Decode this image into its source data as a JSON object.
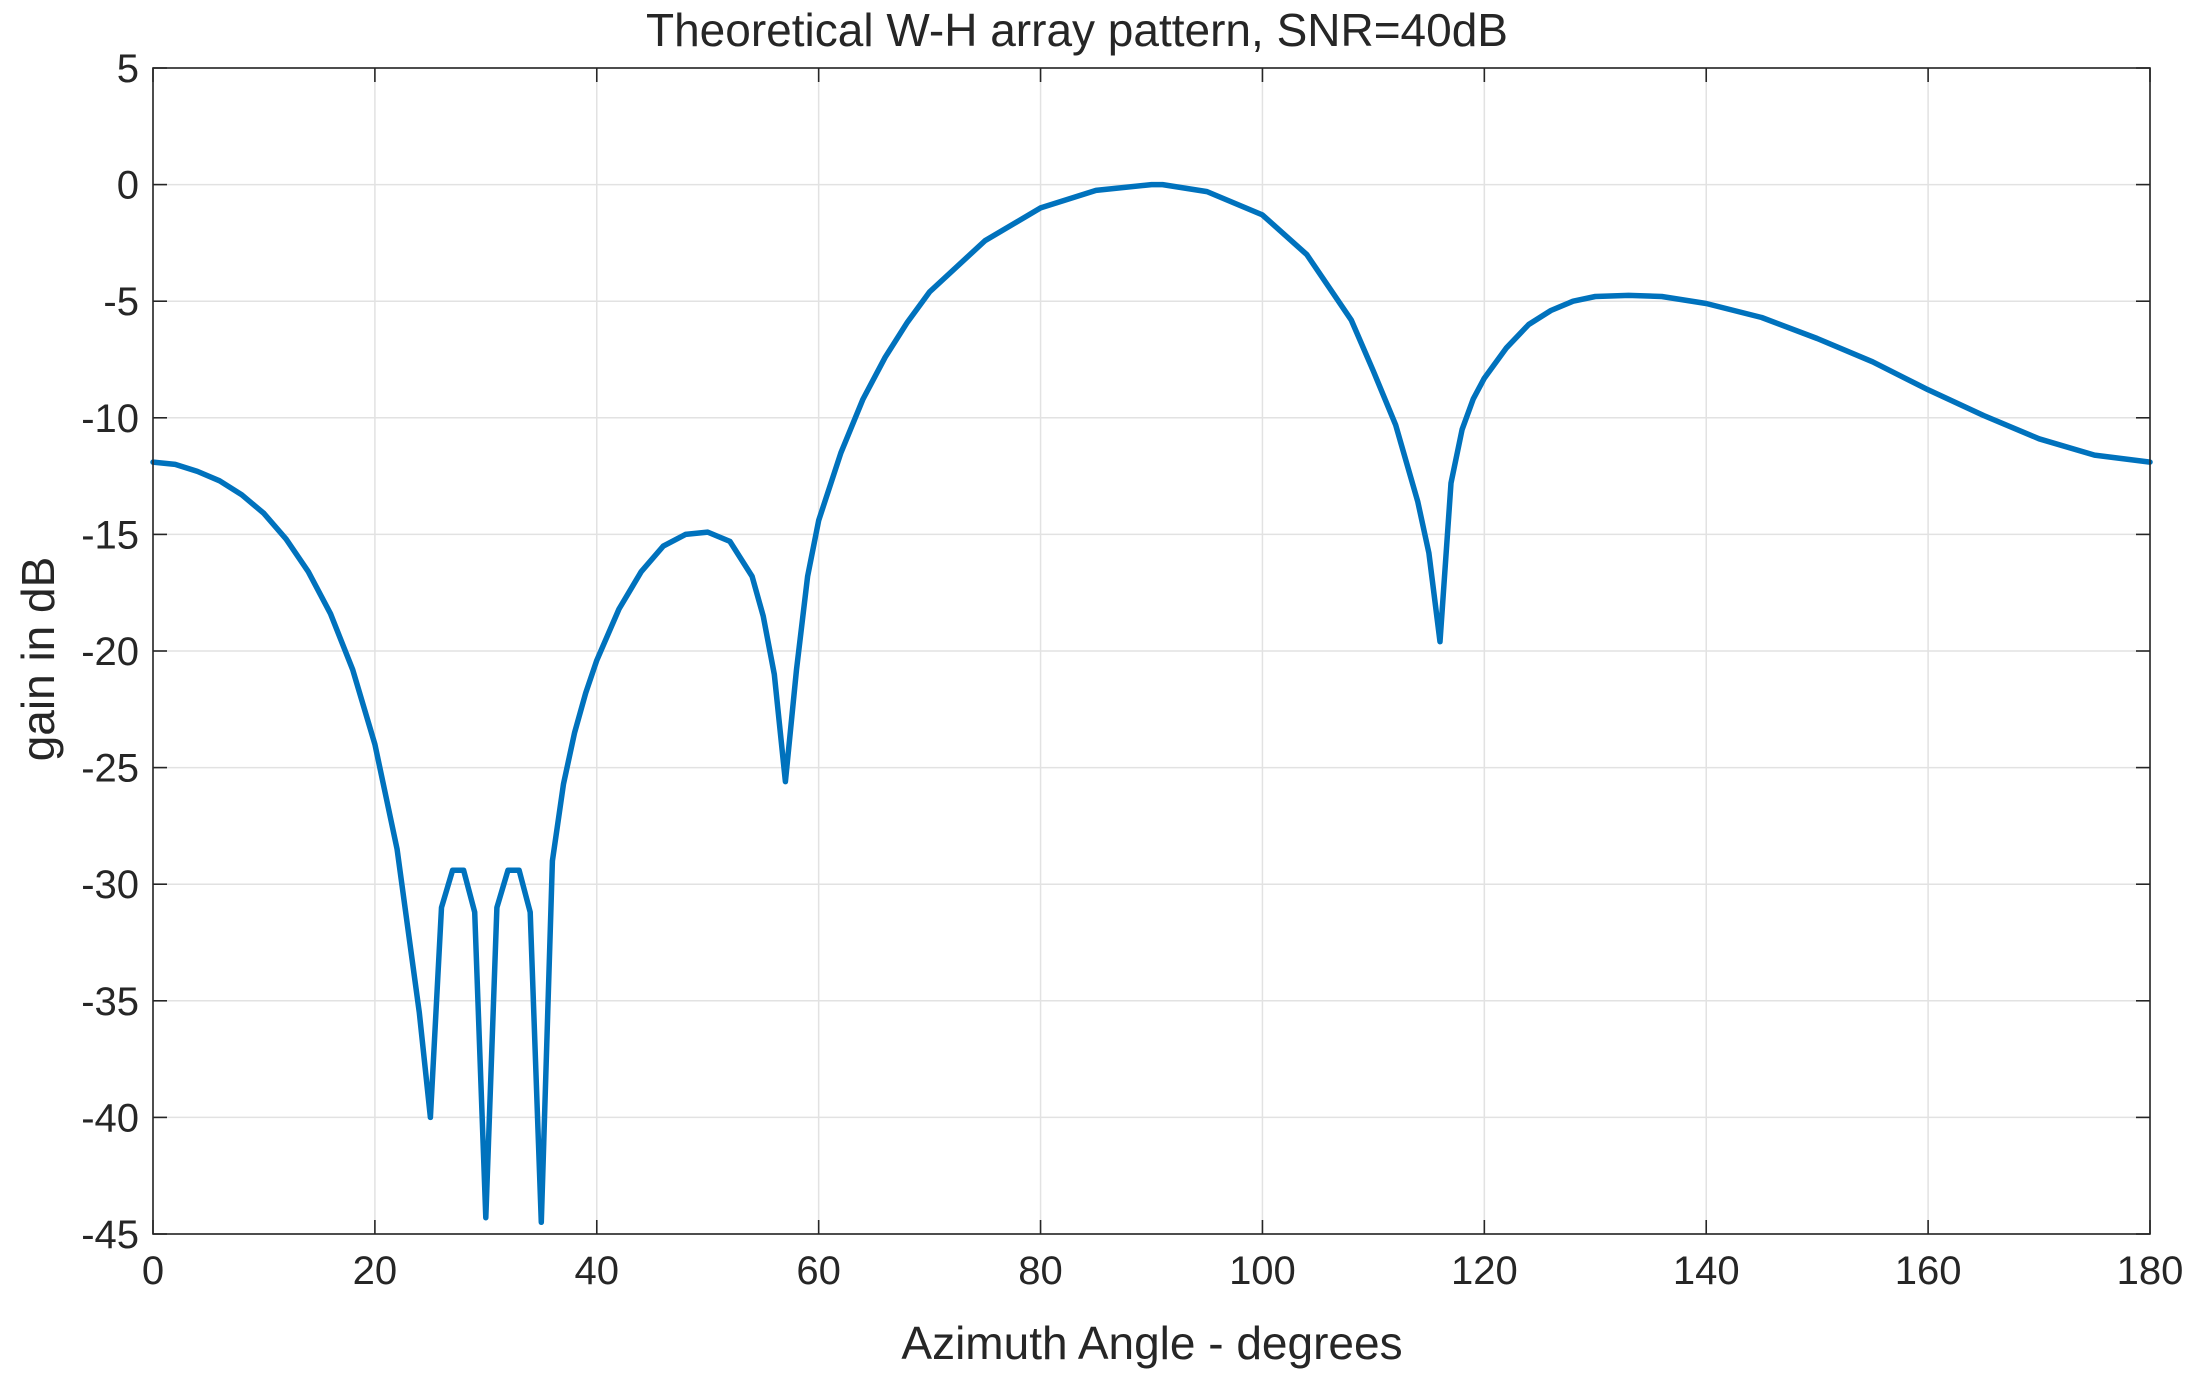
{
  "chart_data": {
    "type": "line",
    "title": "Theoretical W-H array pattern, SNR=40dB",
    "xlabel": "Azimuth Angle - degrees",
    "ylabel": "gain in dB",
    "xlim": [
      0,
      180
    ],
    "ylim": [
      -45,
      5
    ],
    "xticks": [
      0,
      20,
      40,
      60,
      80,
      100,
      120,
      140,
      160,
      180
    ],
    "yticks": [
      5,
      0,
      -5,
      -10,
      -15,
      -20,
      -25,
      -30,
      -35,
      -40,
      -45
    ],
    "grid": true,
    "line_color": "#0072BD",
    "series": [
      {
        "x": [
          0,
          2,
          4,
          6,
          8,
          10,
          12,
          14,
          16,
          18,
          20,
          22,
          24,
          25,
          26,
          27,
          28,
          29,
          30,
          31,
          32,
          33,
          34,
          35,
          36,
          37,
          38,
          39,
          40,
          42,
          44,
          46,
          48,
          50,
          52,
          54,
          55,
          56,
          57,
          58,
          59,
          60,
          62,
          64,
          66,
          68,
          70,
          75,
          80,
          85,
          90,
          91,
          95,
          100,
          104,
          108,
          110,
          112,
          114,
          115,
          116,
          117,
          118,
          119,
          120,
          122,
          124,
          126,
          128,
          130,
          133,
          136,
          140,
          145,
          150,
          155,
          160,
          165,
          170,
          175,
          180
        ],
        "y": [
          -11.9,
          -12.0,
          -12.3,
          -12.7,
          -13.3,
          -14.1,
          -15.2,
          -16.6,
          -18.4,
          -20.8,
          -24.0,
          -28.5,
          -35.5,
          -40.0,
          -31.0,
          -29.4,
          -29.4,
          -31.2,
          -44.3,
          -31.0,
          -29.4,
          -29.4,
          -31.2,
          -44.5,
          -29.0,
          -25.7,
          -23.5,
          -21.8,
          -20.4,
          -18.2,
          -16.6,
          -15.5,
          -15.0,
          -14.9,
          -15.3,
          -16.8,
          -18.5,
          -21.0,
          -25.6,
          -20.8,
          -16.8,
          -14.4,
          -11.5,
          -9.2,
          -7.4,
          -5.9,
          -4.6,
          -2.4,
          -1.0,
          -0.25,
          0.0,
          0.0,
          -0.3,
          -1.3,
          -3.0,
          -5.8,
          -8.0,
          -10.3,
          -13.6,
          -15.8,
          -19.6,
          -12.8,
          -10.5,
          -9.2,
          -8.3,
          -7.0,
          -6.0,
          -5.4,
          -5.0,
          -4.8,
          -4.75,
          -4.8,
          -5.1,
          -5.7,
          -6.6,
          -7.6,
          -8.8,
          -9.9,
          -10.9,
          -11.6,
          -11.9
        ]
      }
    ]
  }
}
